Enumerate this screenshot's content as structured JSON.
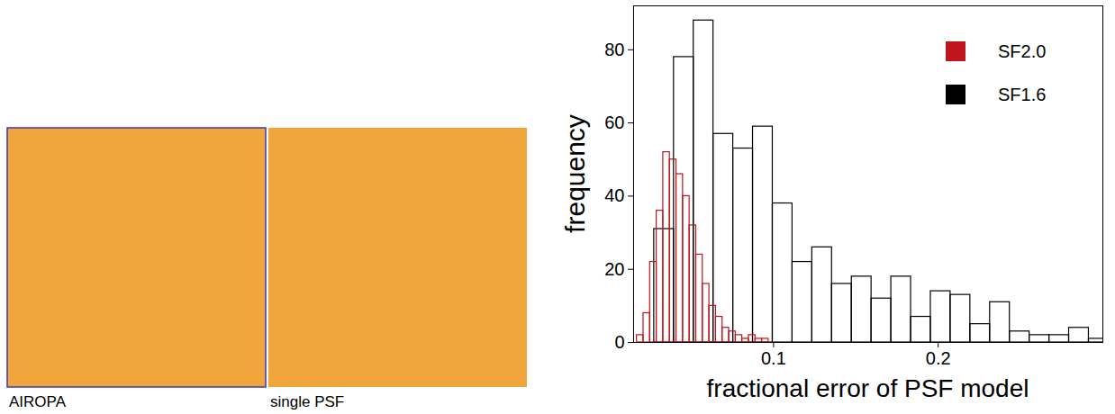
{
  "chart_data": {
    "type": "histogram",
    "xlabel": "fractional error of PSF model",
    "ylabel": "frequency",
    "xlim": [
      0.015,
      0.3
    ],
    "ylim": [
      0,
      92
    ],
    "xticks": [
      0.1,
      0.2
    ],
    "yticks": [
      0,
      20,
      40,
      60,
      80
    ],
    "legend": "upper right",
    "series": [
      {
        "name": "SF1.6",
        "color": "#000000",
        "bins": [
          0.0275,
          0.0395,
          0.0515,
          0.0635,
          0.0755,
          0.0875,
          0.0995,
          0.1115,
          0.1235,
          0.1355,
          0.1475,
          0.1595,
          0.1715,
          0.1835,
          0.1955,
          0.2075,
          0.2195,
          0.2315,
          0.2435,
          0.2555,
          0.2675,
          0.2795,
          0.2915,
          0.3035
        ],
        "values": [
          31,
          78,
          88,
          57,
          53,
          59,
          38,
          22,
          26,
          16,
          18,
          12,
          18,
          7,
          14,
          13,
          5,
          11,
          3,
          2,
          2,
          4,
          1
        ]
      },
      {
        "name": "SF2.0",
        "color": "#c0141c",
        "bins": [
          0.017,
          0.021,
          0.025,
          0.029,
          0.033,
          0.037,
          0.041,
          0.045,
          0.049,
          0.053,
          0.057,
          0.061,
          0.065,
          0.069,
          0.073,
          0.077,
          0.081,
          0.085,
          0.089,
          0.093,
          0.097
        ],
        "values": [
          2,
          8,
          22,
          36,
          52,
          50,
          46,
          40,
          32,
          24,
          16,
          10,
          7,
          4,
          3,
          2,
          1,
          2,
          1,
          1
        ]
      }
    ]
  },
  "panels": [
    {
      "label": "AIROPA"
    },
    {
      "label": "single PSF"
    }
  ]
}
